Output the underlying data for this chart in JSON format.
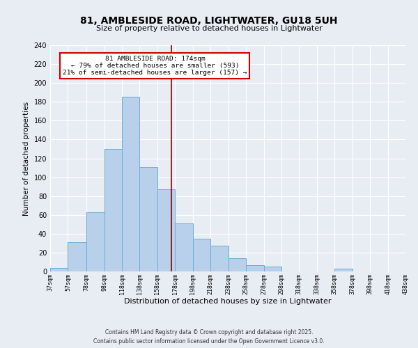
{
  "title": "81, AMBLESIDE ROAD, LIGHTWATER, GU18 5UH",
  "subtitle": "Size of property relative to detached houses in Lightwater",
  "xlabel": "Distribution of detached houses by size in Lightwater",
  "ylabel": "Number of detached properties",
  "bar_values": [
    4,
    31,
    63,
    130,
    185,
    111,
    87,
    51,
    35,
    27,
    14,
    7,
    5,
    0,
    0,
    0,
    3,
    0,
    0,
    0
  ],
  "bin_edges": [
    37,
    57,
    78,
    98,
    118,
    138,
    158,
    178,
    198,
    218,
    238,
    258,
    278,
    298,
    318,
    338,
    358,
    378,
    398,
    418,
    438
  ],
  "bin_labels": [
    "37sqm",
    "57sqm",
    "78sqm",
    "98sqm",
    "118sqm",
    "138sqm",
    "158sqm",
    "178sqm",
    "198sqm",
    "218sqm",
    "238sqm",
    "258sqm",
    "278sqm",
    "298sqm",
    "318sqm",
    "338sqm",
    "358sqm",
    "378sqm",
    "398sqm",
    "418sqm",
    "438sqm"
  ],
  "bar_color": "#b8d0ea",
  "bar_edge_color": "#6aaed6",
  "bg_color": "#e8edf4",
  "grid_color": "#ffffff",
  "vline_x": 174,
  "vline_color": "#8b0000",
  "annotation_title": "81 AMBLESIDE ROAD: 174sqm",
  "annotation_line1": "← 79% of detached houses are smaller (593)",
  "annotation_line2": "21% of semi-detached houses are larger (157) →",
  "annotation_box_color": "#ffffff",
  "annotation_box_edge": "#cc0000",
  "ylim": [
    0,
    240
  ],
  "yticks": [
    0,
    20,
    40,
    60,
    80,
    100,
    120,
    140,
    160,
    180,
    200,
    220,
    240
  ],
  "footnote1": "Contains HM Land Registry data © Crown copyright and database right 2025.",
  "footnote2": "Contains public sector information licensed under the Open Government Licence v3.0.",
  "title_fontsize": 10,
  "subtitle_fontsize": 8,
  "ylabel_fontsize": 7.5,
  "xlabel_fontsize": 8,
  "ytick_fontsize": 7,
  "xtick_fontsize": 6,
  "footnote_fontsize": 5.5
}
